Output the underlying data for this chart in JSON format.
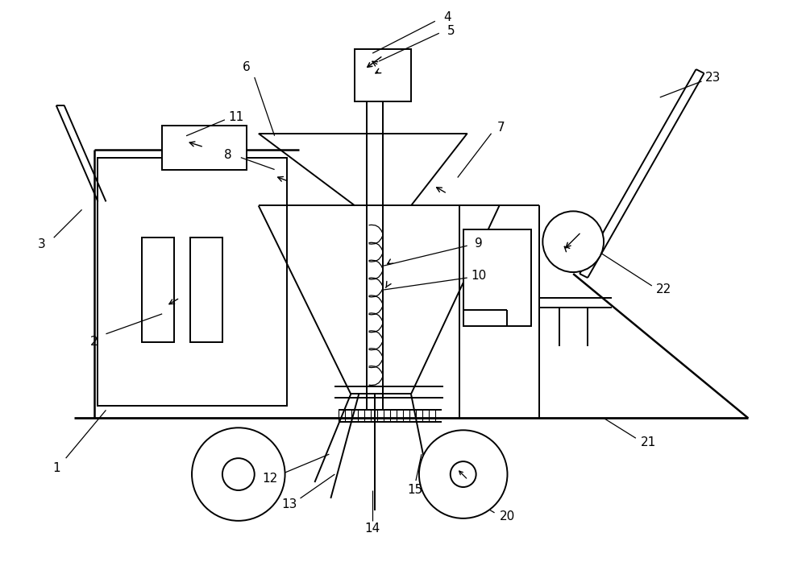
{
  "bg_color": "#ffffff",
  "lc": "#000000",
  "lw": 1.4,
  "fig_w": 10.0,
  "fig_h": 7.08,
  "dpi": 100
}
